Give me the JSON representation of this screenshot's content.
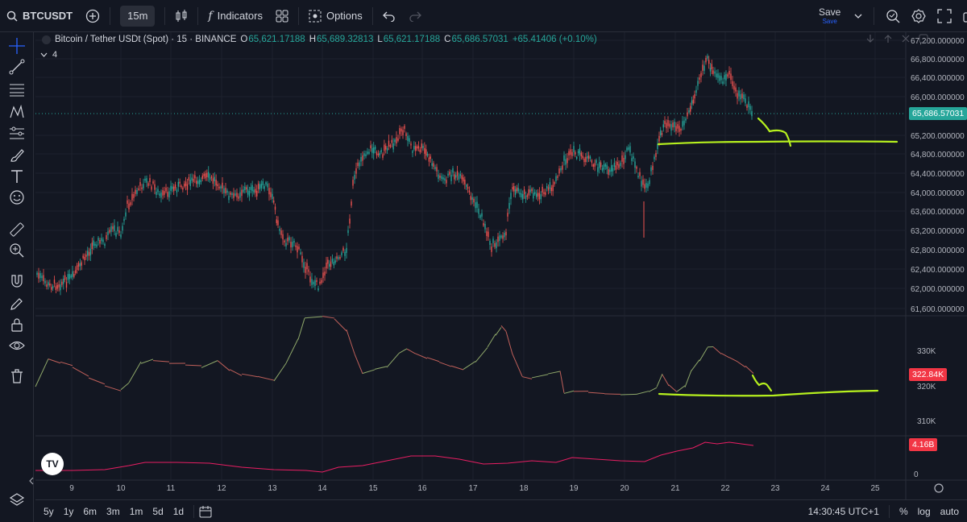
{
  "toolbar": {
    "symbol": "BTCUSDT",
    "interval": "15m",
    "indicators_label": "Indicators",
    "options_label": "Options",
    "save_label": "Save",
    "save_sub": "Save"
  },
  "legend": {
    "name": "Bitcoin / Tether USDt (Spot) · 15 · BINANCE",
    "o_key": "O",
    "o_val": "65,621.17188",
    "h_key": "H",
    "h_val": "65,689.32813",
    "l_key": "L",
    "l_val": "65,621.17188",
    "c_key": "C",
    "c_val": "65,686.57031",
    "change": "+65.41406 (+0.10%)",
    "hidden_count": "4"
  },
  "price_axis": {
    "ticks": [
      "67,200.000000",
      "66,800.000000",
      "66,400.000000",
      "66,000.000000",
      "65,200.000000",
      "64,800.000000",
      "64,400.000000",
      "64,000.000000",
      "63,600.000000",
      "63,200.000000",
      "62,800.000000",
      "62,400.000000",
      "62,000.000000",
      "61,600.000000"
    ],
    "last_price": "65,686.57031"
  },
  "volume_axis": {
    "ticks": [
      "330K",
      "320K",
      "310K"
    ],
    "last_value": "322.84K"
  },
  "third_axis": {
    "ticks": [
      "0"
    ],
    "last_value": "4.16B"
  },
  "time_axis": {
    "ticks": [
      "9",
      "10",
      "11",
      "12",
      "13",
      "14",
      "15",
      "16",
      "17",
      "18",
      "19",
      "20",
      "21",
      "22",
      "23",
      "24",
      "25"
    ]
  },
  "bottom": {
    "ranges": [
      "5y",
      "1y",
      "6m",
      "3m",
      "1m",
      "5d",
      "1d"
    ],
    "clock": "14:30:45 UTC+1",
    "percent_label": "%",
    "log_label": "log",
    "auto_label": "auto"
  },
  "colors": {
    "bg": "#131722",
    "up": "#26a69a",
    "down": "#ef5350",
    "annotation": "#b6f01e",
    "last_price_tag": "#26a69a",
    "volume_tag": "#f23645",
    "third_tag": "#f23645"
  }
}
